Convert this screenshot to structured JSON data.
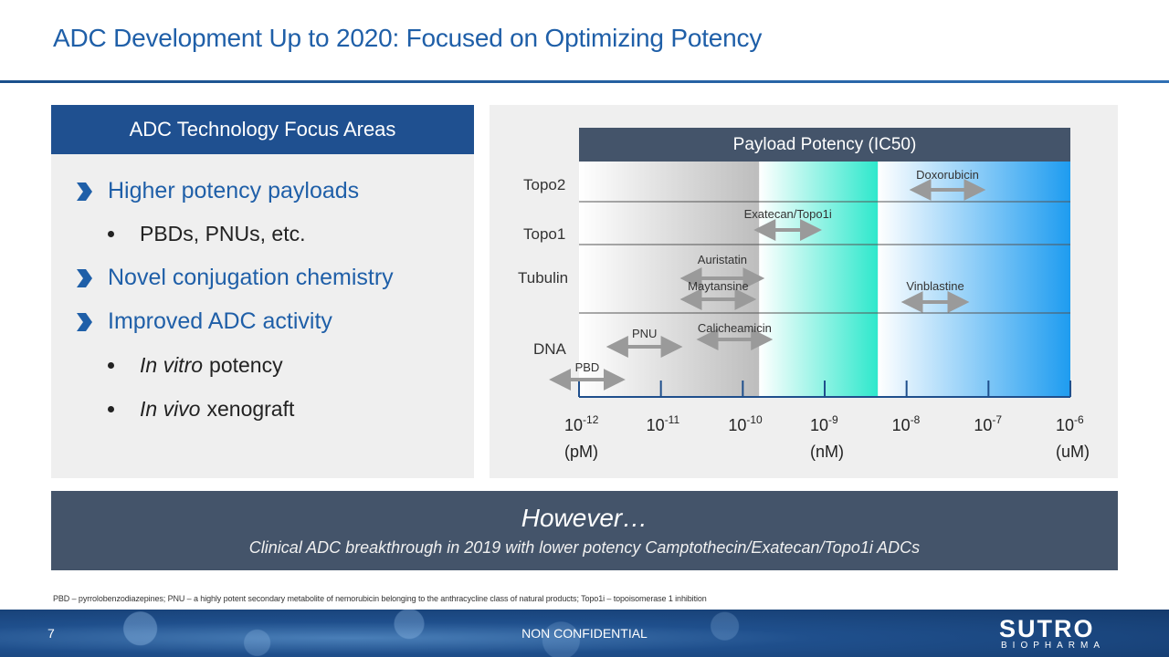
{
  "title": "ADC Development Up to 2020: Focused on Optimizing Potency",
  "left_panel": {
    "header": "ADC Technology Focus Areas",
    "items": [
      {
        "level": 1,
        "text": "Higher potency payloads"
      },
      {
        "level": 2,
        "text": "PBDs, PNUs, etc."
      },
      {
        "level": 1,
        "text": "Novel conjugation chemistry"
      },
      {
        "level": 1,
        "text": "Improved ADC activity"
      },
      {
        "level": 2,
        "italic": "In vitro",
        "text": "potency"
      },
      {
        "level": 2,
        "italic": "In vivo",
        "text": "xenograft"
      }
    ]
  },
  "chart_data": {
    "type": "range",
    "title": "Payload Potency (IC50)",
    "x_scale": "log",
    "x_range_exponent": [
      -12,
      -6
    ],
    "ticks": [
      {
        "base": "10",
        "exp": "-12",
        "unit": "(pM)"
      },
      {
        "base": "10",
        "exp": "-11",
        "unit": ""
      },
      {
        "base": "10",
        "exp": "-10",
        "unit": ""
      },
      {
        "base": "10",
        "exp": "-9",
        "unit": "(nM)"
      },
      {
        "base": "10",
        "exp": "-8",
        "unit": ""
      },
      {
        "base": "10",
        "exp": "-7",
        "unit": ""
      },
      {
        "base": "10",
        "exp": "-6",
        "unit": "(uM)"
      }
    ],
    "categories": [
      "Topo2",
      "Topo1",
      "Tubulin",
      "DNA"
    ],
    "payloads": [
      {
        "name": "Doxorubicin",
        "category": "Topo2",
        "log_min": -7.9,
        "log_max": -7.1
      },
      {
        "name": "Exatecan/Topo1i",
        "category": "Topo1",
        "log_min": -9.8,
        "log_max": -9.1
      },
      {
        "name": "Auristatin",
        "category": "Tubulin",
        "log_min": -10.7,
        "log_max": -9.8
      },
      {
        "name": "Maytansine",
        "category": "Tubulin",
        "log_min": -10.7,
        "log_max": -9.9
      },
      {
        "name": "Vinblastine",
        "category": "Tubulin",
        "log_min": -8.0,
        "log_max": -7.3
      },
      {
        "name": "PNU",
        "category": "DNA",
        "log_min": -11.6,
        "log_max": -10.8
      },
      {
        "name": "Calicheamicin",
        "category": "DNA",
        "log_min": -10.5,
        "log_max": -9.7
      },
      {
        "name": "PBD",
        "category": "DNA",
        "log_min": -12.3,
        "log_max": -11.5
      }
    ],
    "colors": {
      "arrow": "#9a9a9a",
      "band_gray": "#c8c8c8",
      "band_teal": "#2ee8cc",
      "band_blue": "#1e9cf0"
    }
  },
  "however": {
    "title": "However…",
    "subtitle": "Clinical ADC breakthrough in 2019 with lower potency Camptothecin/Exatecan/Topo1i ADCs"
  },
  "footnote": "PBD – pyrrolobenzodiazepines; PNU – a highly potent secondary metabolite of nemorubicin belonging to the anthracycline class of natural products; Topo1i – topoisomerase 1 inhibition",
  "footer": {
    "page_number": "7",
    "confidential": "NON CONFIDENTIAL",
    "logo_main": "SUTRO",
    "logo_sub": "BIOPHARMA"
  }
}
